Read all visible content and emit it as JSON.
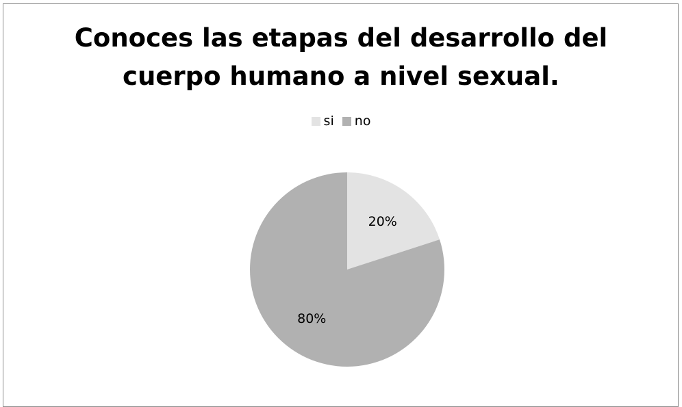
{
  "chart_data": {
    "type": "pie",
    "title_lines": [
      "Conoces las etapas del desarrollo del",
      "cuerpo humano a nivel sexual."
    ],
    "slices": [
      {
        "name": "si",
        "value": 20,
        "label": "20%",
        "color": "#e3e3e3"
      },
      {
        "name": "no",
        "value": 80,
        "label": "80%",
        "color": "#b1b1b1"
      }
    ],
    "legend_position": "top"
  }
}
